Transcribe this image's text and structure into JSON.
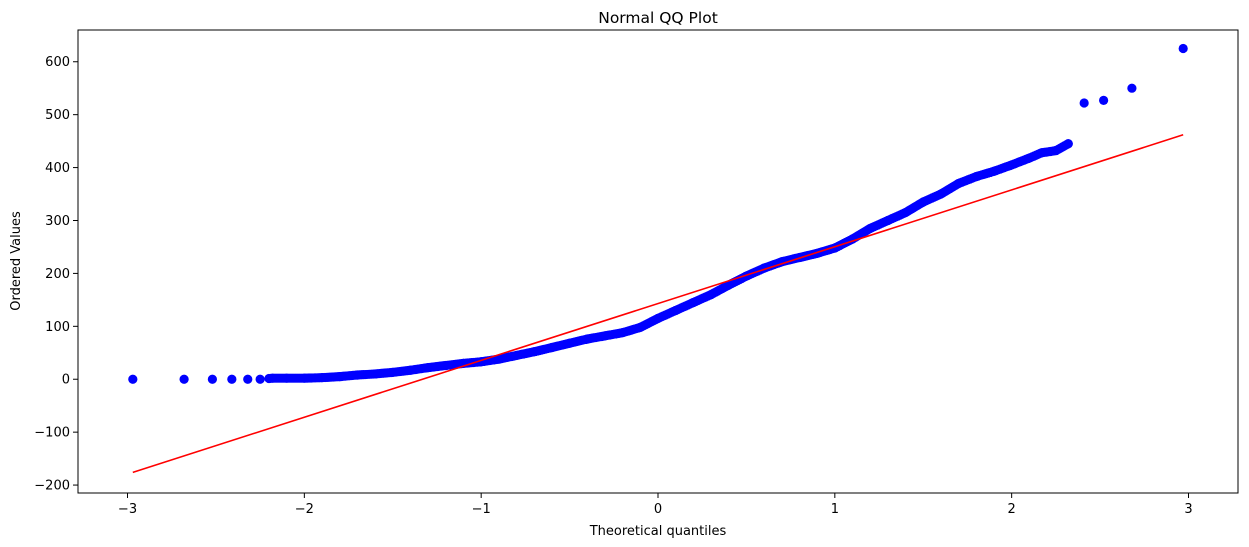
{
  "chart_data": {
    "type": "scatter",
    "title": "Normal QQ Plot",
    "xlabel": "Theoretical quantiles",
    "ylabel": "Ordered Values",
    "xlim": [
      -3.28,
      3.28
    ],
    "ylim": [
      -215,
      660
    ],
    "xticks": [
      -3,
      -2,
      -1,
      0,
      1,
      2,
      3
    ],
    "xtick_labels": [
      "−3",
      "−2",
      "−1",
      "0",
      "1",
      "2",
      "3"
    ],
    "yticks": [
      -200,
      -100,
      0,
      100,
      200,
      300,
      400,
      500,
      600
    ],
    "ytick_labels": [
      "−200",
      "−100",
      "0",
      "100",
      "200",
      "300",
      "400",
      "500",
      "600"
    ],
    "grid": false,
    "marker_color": "#0000ff",
    "fit_line_color": "#ff0000",
    "series": [
      {
        "kind": "points",
        "anchors": [
          [
            -2.97,
            0
          ],
          [
            -2.68,
            0
          ],
          [
            -2.52,
            0
          ],
          [
            -2.41,
            0
          ],
          [
            -2.32,
            0
          ],
          [
            -2.25,
            0
          ],
          [
            -2.18,
            2
          ],
          [
            -2.1,
            2
          ],
          [
            -2.0,
            2
          ],
          [
            -1.9,
            3
          ],
          [
            -1.8,
            5
          ],
          [
            -1.7,
            8
          ],
          [
            -1.6,
            10
          ],
          [
            -1.5,
            13
          ],
          [
            -1.4,
            17
          ],
          [
            -1.3,
            22
          ],
          [
            -1.2,
            26
          ],
          [
            -1.1,
            30
          ],
          [
            -1.0,
            33
          ],
          [
            -0.9,
            38
          ],
          [
            -0.8,
            45
          ],
          [
            -0.7,
            52
          ],
          [
            -0.6,
            60
          ],
          [
            -0.5,
            68
          ],
          [
            -0.4,
            76
          ],
          [
            -0.3,
            82
          ],
          [
            -0.2,
            88
          ],
          [
            -0.1,
            98
          ],
          [
            0.0,
            115
          ],
          [
            0.1,
            130
          ],
          [
            0.2,
            145
          ],
          [
            0.3,
            160
          ],
          [
            0.4,
            178
          ],
          [
            0.5,
            195
          ],
          [
            0.6,
            210
          ],
          [
            0.7,
            222
          ],
          [
            0.8,
            230
          ],
          [
            0.9,
            238
          ],
          [
            1.0,
            248
          ],
          [
            1.1,
            265
          ],
          [
            1.2,
            285
          ],
          [
            1.3,
            300
          ],
          [
            1.4,
            315
          ],
          [
            1.5,
            335
          ],
          [
            1.6,
            350
          ],
          [
            1.7,
            370
          ],
          [
            1.8,
            383
          ],
          [
            1.9,
            393
          ],
          [
            2.0,
            405
          ],
          [
            2.1,
            418
          ],
          [
            2.17,
            428
          ],
          [
            2.25,
            432
          ],
          [
            2.32,
            445
          ]
        ],
        "tail_points": [
          [
            2.41,
            522
          ],
          [
            2.52,
            527
          ],
          [
            2.68,
            550
          ],
          [
            2.97,
            625
          ]
        ],
        "n": 400
      },
      {
        "kind": "fit-line",
        "x": [
          -2.97,
          2.97
        ],
        "y": [
          -176,
          462
        ]
      }
    ]
  }
}
